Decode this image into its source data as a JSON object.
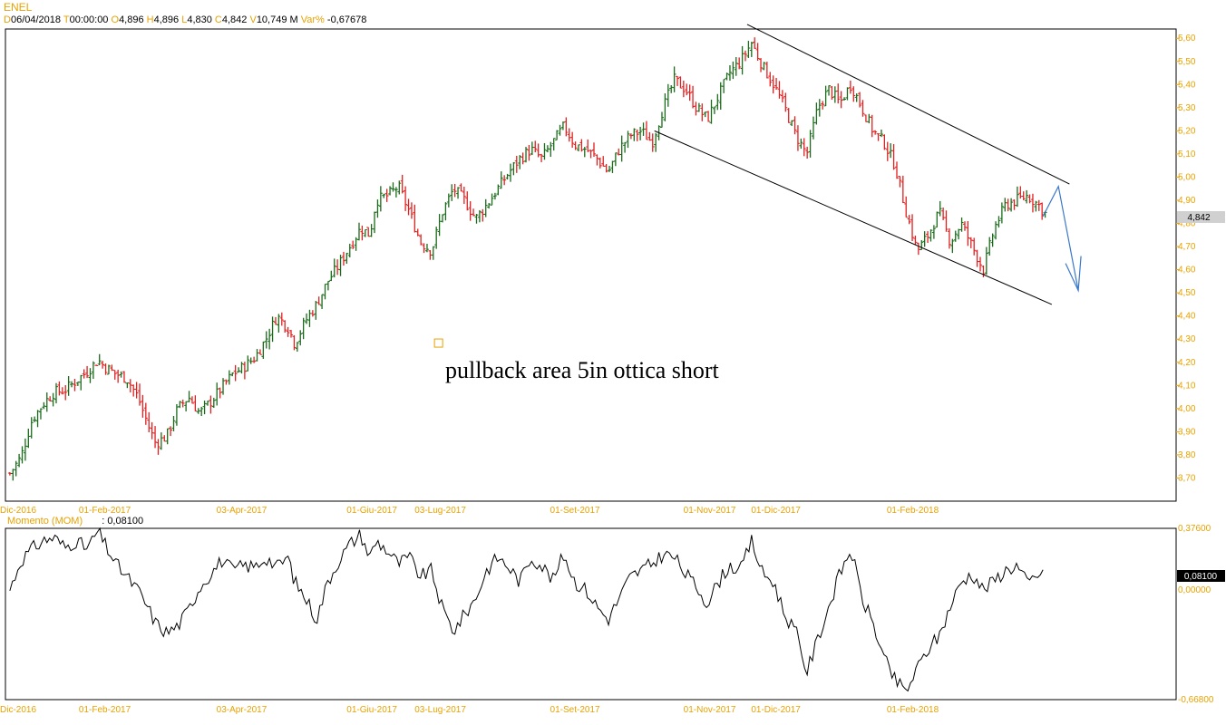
{
  "header": {
    "symbol": "ENEL",
    "d_label": "D",
    "date": "06/04/2018",
    "t_label": "T",
    "time": "00:00:00",
    "o_label": "O",
    "open": "4,896",
    "h_label": "H",
    "high": "4,896",
    "l_label": "L",
    "low": "4,830",
    "c_label": "C",
    "close": "4,842",
    "v_label": "V",
    "volume": "10,749 M",
    "var_label": "Var%",
    "var": "-0,67678"
  },
  "momentum": {
    "label": "Momento (MOM)",
    "separator": ":",
    "value": "0,08100"
  },
  "last_price_tag": "4,842",
  "mom_price_tag": "0,08100",
  "annotation": "pullback area 5in ottica short",
  "colors": {
    "up": "#1a6b1a",
    "down": "#e02020",
    "axis": "#e8a200",
    "channel": "#000000",
    "arrow": "#3a78c8"
  },
  "chart_data": [
    {
      "type": "ohlc",
      "title": "ENEL",
      "ylim": [
        3.6,
        5.64
      ],
      "y_ticks": [
        "3,70",
        "3,80",
        "3,90",
        "4,00",
        "4,10",
        "4,20",
        "4,30",
        "4,40",
        "4,50",
        "4,60",
        "4,70",
        "4,80",
        "4,90",
        "5,00",
        "5,10",
        "5,20",
        "5,30",
        "5,40",
        "5,50",
        "5,60"
      ],
      "x_ticks": [
        "Dic-2016",
        "01-Feb-2017",
        "03-Apr-2017",
        "01-Giu-2017",
        "03-Lug-2017",
        "01-Set-2017",
        "01-Nov-2017",
        "01-Dic-2017",
        "01-Feb-2018"
      ],
      "x_tick_days": [
        -8,
        35,
        97,
        156,
        187,
        248,
        309,
        339,
        401
      ],
      "day_range": [
        -10,
        508
      ],
      "last_value": 4.842,
      "closes": [
        [
          -8,
          3.72
        ],
        [
          -3,
          3.79
        ],
        [
          2,
          3.95
        ],
        [
          7,
          4.02
        ],
        [
          12,
          4.07
        ],
        [
          17,
          4.08
        ],
        [
          22,
          4.12
        ],
        [
          27,
          4.16
        ],
        [
          32,
          4.21
        ],
        [
          35,
          4.18
        ],
        [
          40,
          4.15
        ],
        [
          45,
          4.13
        ],
        [
          50,
          4.05
        ],
        [
          55,
          3.92
        ],
        [
          58,
          3.85
        ],
        [
          63,
          3.88
        ],
        [
          68,
          4.0
        ],
        [
          73,
          4.05
        ],
        [
          78,
          3.98
        ],
        [
          83,
          4.03
        ],
        [
          88,
          4.09
        ],
        [
          93,
          4.15
        ],
        [
          98,
          4.18
        ],
        [
          103,
          4.22
        ],
        [
          108,
          4.3
        ],
        [
          113,
          4.4
        ],
        [
          118,
          4.35
        ],
        [
          121,
          4.28
        ],
        [
          126,
          4.38
        ],
        [
          131,
          4.45
        ],
        [
          136,
          4.55
        ],
        [
          141,
          4.62
        ],
        [
          146,
          4.7
        ],
        [
          151,
          4.78
        ],
        [
          155,
          4.75
        ],
        [
          158,
          4.9
        ],
        [
          163,
          4.92
        ],
        [
          168,
          4.96
        ],
        [
          173,
          4.85
        ],
        [
          178,
          4.72
        ],
        [
          183,
          4.68
        ],
        [
          188,
          4.85
        ],
        [
          193,
          4.95
        ],
        [
          198,
          4.9
        ],
        [
          203,
          4.82
        ],
        [
          208,
          4.88
        ],
        [
          213,
          4.95
        ],
        [
          218,
          5.02
        ],
        [
          223,
          5.08
        ],
        [
          228,
          5.12
        ],
        [
          233,
          5.08
        ],
        [
          238,
          5.15
        ],
        [
          243,
          5.22
        ],
        [
          248,
          5.14
        ],
        [
          253,
          5.12
        ],
        [
          258,
          5.08
        ],
        [
          263,
          5.02
        ],
        [
          268,
          5.12
        ],
        [
          273,
          5.18
        ],
        [
          278,
          5.2
        ],
        [
          283,
          5.15
        ],
        [
          288,
          5.3
        ],
        [
          293,
          5.42
        ],
        [
          298,
          5.38
        ],
        [
          303,
          5.3
        ],
        [
          308,
          5.25
        ],
        [
          313,
          5.35
        ],
        [
          318,
          5.45
        ],
        [
          323,
          5.5
        ],
        [
          328,
          5.58
        ],
        [
          333,
          5.48
        ],
        [
          338,
          5.4
        ],
        [
          343,
          5.3
        ],
        [
          348,
          5.18
        ],
        [
          353,
          5.1
        ],
        [
          358,
          5.3
        ],
        [
          363,
          5.38
        ],
        [
          368,
          5.32
        ],
        [
          373,
          5.4
        ],
        [
          378,
          5.3
        ],
        [
          383,
          5.2
        ],
        [
          388,
          5.15
        ],
        [
          393,
          5.05
        ],
        [
          398,
          4.85
        ],
        [
          403,
          4.68
        ],
        [
          408,
          4.75
        ],
        [
          413,
          4.85
        ],
        [
          418,
          4.72
        ],
        [
          423,
          4.8
        ],
        [
          428,
          4.7
        ],
        [
          433,
          4.6
        ],
        [
          438,
          4.78
        ],
        [
          443,
          4.88
        ],
        [
          448,
          4.9
        ],
        [
          453,
          4.92
        ],
        [
          458,
          4.88
        ],
        [
          461,
          4.842
        ]
      ],
      "channel": {
        "upper": [
          [
            326,
            5.66
          ],
          [
            472,
            4.97
          ]
        ],
        "lower": [
          [
            284,
            5.2
          ],
          [
            464,
            4.45
          ]
        ]
      },
      "projection_arrow": [
        [
          460,
          4.83
        ],
        [
          467,
          4.96
        ],
        [
          476,
          4.51
        ]
      ],
      "annotation_marker": {
        "day": 186,
        "value": 4.285
      }
    },
    {
      "type": "line",
      "title": "Momento (MOM)",
      "ylim": [
        -0.668,
        0.376
      ],
      "y_ticks": [
        "0,37600",
        "0,00000",
        "-0,66800"
      ],
      "last_value": 0.081,
      "points": [
        [
          -8,
          0.0
        ],
        [
          -3,
          0.18
        ],
        [
          2,
          0.25
        ],
        [
          7,
          0.3
        ],
        [
          12,
          0.32
        ],
        [
          17,
          0.26
        ],
        [
          22,
          0.3
        ],
        [
          27,
          0.25
        ],
        [
          32,
          0.36
        ],
        [
          35,
          0.28
        ],
        [
          40,
          0.16
        ],
        [
          45,
          0.08
        ],
        [
          50,
          0.0
        ],
        [
          55,
          -0.12
        ],
        [
          58,
          -0.2
        ],
        [
          63,
          -0.26
        ],
        [
          68,
          -0.22
        ],
        [
          73,
          -0.12
        ],
        [
          78,
          0.02
        ],
        [
          83,
          0.1
        ],
        [
          88,
          0.18
        ],
        [
          93,
          0.12
        ],
        [
          98,
          0.15
        ],
        [
          103,
          0.14
        ],
        [
          108,
          0.2
        ],
        [
          113,
          0.14
        ],
        [
          118,
          0.2
        ],
        [
          121,
          0.05
        ],
        [
          126,
          -0.05
        ],
        [
          131,
          -0.18
        ],
        [
          136,
          0.05
        ],
        [
          141,
          0.18
        ],
        [
          146,
          0.28
        ],
        [
          151,
          0.34
        ],
        [
          155,
          0.2
        ],
        [
          158,
          0.3
        ],
        [
          163,
          0.24
        ],
        [
          168,
          0.16
        ],
        [
          173,
          0.2
        ],
        [
          178,
          0.08
        ],
        [
          183,
          0.12
        ],
        [
          188,
          -0.12
        ],
        [
          193,
          -0.25
        ],
        [
          198,
          -0.15
        ],
        [
          203,
          -0.05
        ],
        [
          208,
          0.12
        ],
        [
          213,
          0.2
        ],
        [
          218,
          0.14
        ],
        [
          223,
          0.05
        ],
        [
          228,
          0.2
        ],
        [
          233,
          0.15
        ],
        [
          238,
          0.06
        ],
        [
          243,
          0.22
        ],
        [
          248,
          0.05
        ],
        [
          253,
          0.0
        ],
        [
          258,
          -0.1
        ],
        [
          263,
          -0.18
        ],
        [
          268,
          -0.05
        ],
        [
          273,
          0.08
        ],
        [
          278,
          0.12
        ],
        [
          283,
          0.16
        ],
        [
          288,
          0.22
        ],
        [
          293,
          0.2
        ],
        [
          298,
          0.1
        ],
        [
          303,
          0.02
        ],
        [
          308,
          -0.08
        ],
        [
          313,
          0.05
        ],
        [
          318,
          0.15
        ],
        [
          323,
          0.12
        ],
        [
          328,
          0.3
        ],
        [
          333,
          0.1
        ],
        [
          338,
          0.05
        ],
        [
          343,
          -0.15
        ],
        [
          348,
          -0.25
        ],
        [
          353,
          -0.5
        ],
        [
          358,
          -0.3
        ],
        [
          363,
          -0.1
        ],
        [
          368,
          0.1
        ],
        [
          373,
          0.25
        ],
        [
          378,
          -0.05
        ],
        [
          383,
          -0.2
        ],
        [
          388,
          -0.42
        ],
        [
          393,
          -0.55
        ],
        [
          398,
          -0.62
        ],
        [
          403,
          -0.48
        ],
        [
          408,
          -0.36
        ],
        [
          413,
          -0.28
        ],
        [
          418,
          -0.1
        ],
        [
          423,
          0.05
        ],
        [
          428,
          0.1
        ],
        [
          433,
          0.0
        ],
        [
          438,
          0.06
        ],
        [
          443,
          0.12
        ],
        [
          448,
          0.15
        ],
        [
          453,
          0.04
        ],
        [
          458,
          0.1
        ],
        [
          461,
          0.081
        ]
      ]
    }
  ]
}
